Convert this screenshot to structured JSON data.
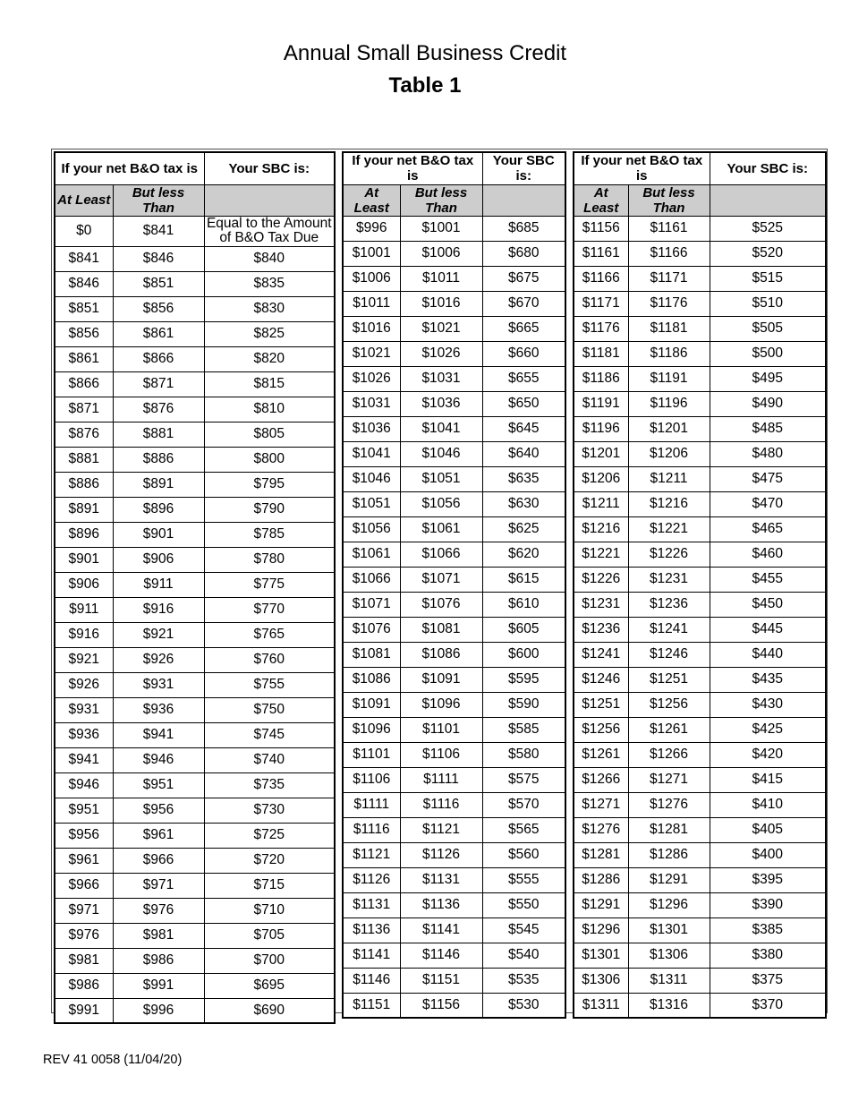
{
  "page": {
    "title_line1": "Annual Small Business Credit",
    "title_line2": "Table 1",
    "footer": "REV 41 0058 (11/04/20)"
  },
  "colors": {
    "subheader_bg": "#cdcdcd",
    "border": "#000000",
    "text": "#000000"
  },
  "table": {
    "column_headers": {
      "net_tax": "If your net B&O tax is",
      "sbc": "Your SBC is:",
      "at_least": "At Least",
      "but_less_than": "But less Than"
    },
    "groups": [
      {
        "rows": [
          [
            "$0",
            "$841",
            "Equal to the Amount of B&O Tax Due"
          ],
          [
            "$841",
            "$846",
            "$840"
          ],
          [
            "$846",
            "$851",
            "$835"
          ],
          [
            "$851",
            "$856",
            "$830"
          ],
          [
            "$856",
            "$861",
            "$825"
          ],
          [
            "$861",
            "$866",
            "$820"
          ],
          [
            "$866",
            "$871",
            "$815"
          ],
          [
            "$871",
            "$876",
            "$810"
          ],
          [
            "$876",
            "$881",
            "$805"
          ],
          [
            "$881",
            "$886",
            "$800"
          ],
          [
            "$886",
            "$891",
            "$795"
          ],
          [
            "$891",
            "$896",
            "$790"
          ],
          [
            "$896",
            "$901",
            "$785"
          ],
          [
            "$901",
            "$906",
            "$780"
          ],
          [
            "$906",
            "$911",
            "$775"
          ],
          [
            "$911",
            "$916",
            "$770"
          ],
          [
            "$916",
            "$921",
            "$765"
          ],
          [
            "$921",
            "$926",
            "$760"
          ],
          [
            "$926",
            "$931",
            "$755"
          ],
          [
            "$931",
            "$936",
            "$750"
          ],
          [
            "$936",
            "$941",
            "$745"
          ],
          [
            "$941",
            "$946",
            "$740"
          ],
          [
            "$946",
            "$951",
            "$735"
          ],
          [
            "$951",
            "$956",
            "$730"
          ],
          [
            "$956",
            "$961",
            "$725"
          ],
          [
            "$961",
            "$966",
            "$720"
          ],
          [
            "$966",
            "$971",
            "$715"
          ],
          [
            "$971",
            "$976",
            "$710"
          ],
          [
            "$976",
            "$981",
            "$705"
          ],
          [
            "$981",
            "$986",
            "$700"
          ],
          [
            "$986",
            "$991",
            "$695"
          ],
          [
            "$991",
            "$996",
            "$690"
          ]
        ]
      },
      {
        "rows": [
          [
            "$996",
            "$1001",
            "$685"
          ],
          [
            "$1001",
            "$1006",
            "$680"
          ],
          [
            "$1006",
            "$1011",
            "$675"
          ],
          [
            "$1011",
            "$1016",
            "$670"
          ],
          [
            "$1016",
            "$1021",
            "$665"
          ],
          [
            "$1021",
            "$1026",
            "$660"
          ],
          [
            "$1026",
            "$1031",
            "$655"
          ],
          [
            "$1031",
            "$1036",
            "$650"
          ],
          [
            "$1036",
            "$1041",
            "$645"
          ],
          [
            "$1041",
            "$1046",
            "$640"
          ],
          [
            "$1046",
            "$1051",
            "$635"
          ],
          [
            "$1051",
            "$1056",
            "$630"
          ],
          [
            "$1056",
            "$1061",
            "$625"
          ],
          [
            "$1061",
            "$1066",
            "$620"
          ],
          [
            "$1066",
            "$1071",
            "$615"
          ],
          [
            "$1071",
            "$1076",
            "$610"
          ],
          [
            "$1076",
            "$1081",
            "$605"
          ],
          [
            "$1081",
            "$1086",
            "$600"
          ],
          [
            "$1086",
            "$1091",
            "$595"
          ],
          [
            "$1091",
            "$1096",
            "$590"
          ],
          [
            "$1096",
            "$1101",
            "$585"
          ],
          [
            "$1101",
            "$1106",
            "$580"
          ],
          [
            "$1106",
            "$1111",
            "$575"
          ],
          [
            "$1111",
            "$1116",
            "$570"
          ],
          [
            "$1116",
            "$1121",
            "$565"
          ],
          [
            "$1121",
            "$1126",
            "$560"
          ],
          [
            "$1126",
            "$1131",
            "$555"
          ],
          [
            "$1131",
            "$1136",
            "$550"
          ],
          [
            "$1136",
            "$1141",
            "$545"
          ],
          [
            "$1141",
            "$1146",
            "$540"
          ],
          [
            "$1146",
            "$1151",
            "$535"
          ],
          [
            "$1151",
            "$1156",
            "$530"
          ]
        ]
      },
      {
        "rows": [
          [
            "$1156",
            "$1161",
            "$525"
          ],
          [
            "$1161",
            "$1166",
            "$520"
          ],
          [
            "$1166",
            "$1171",
            "$515"
          ],
          [
            "$1171",
            "$1176",
            "$510"
          ],
          [
            "$1176",
            "$1181",
            "$505"
          ],
          [
            "$1181",
            "$1186",
            "$500"
          ],
          [
            "$1186",
            "$1191",
            "$495"
          ],
          [
            "$1191",
            "$1196",
            "$490"
          ],
          [
            "$1196",
            "$1201",
            "$485"
          ],
          [
            "$1201",
            "$1206",
            "$480"
          ],
          [
            "$1206",
            "$1211",
            "$475"
          ],
          [
            "$1211",
            "$1216",
            "$470"
          ],
          [
            "$1216",
            "$1221",
            "$465"
          ],
          [
            "$1221",
            "$1226",
            "$460"
          ],
          [
            "$1226",
            "$1231",
            "$455"
          ],
          [
            "$1231",
            "$1236",
            "$450"
          ],
          [
            "$1236",
            "$1241",
            "$445"
          ],
          [
            "$1241",
            "$1246",
            "$440"
          ],
          [
            "$1246",
            "$1251",
            "$435"
          ],
          [
            "$1251",
            "$1256",
            "$430"
          ],
          [
            "$1256",
            "$1261",
            "$425"
          ],
          [
            "$1261",
            "$1266",
            "$420"
          ],
          [
            "$1266",
            "$1271",
            "$415"
          ],
          [
            "$1271",
            "$1276",
            "$410"
          ],
          [
            "$1276",
            "$1281",
            "$405"
          ],
          [
            "$1281",
            "$1286",
            "$400"
          ],
          [
            "$1286",
            "$1291",
            "$395"
          ],
          [
            "$1291",
            "$1296",
            "$390"
          ],
          [
            "$1296",
            "$1301",
            "$385"
          ],
          [
            "$1301",
            "$1306",
            "$380"
          ],
          [
            "$1306",
            "$1311",
            "$375"
          ],
          [
            "$1311",
            "$1316",
            "$370"
          ]
        ]
      }
    ]
  }
}
